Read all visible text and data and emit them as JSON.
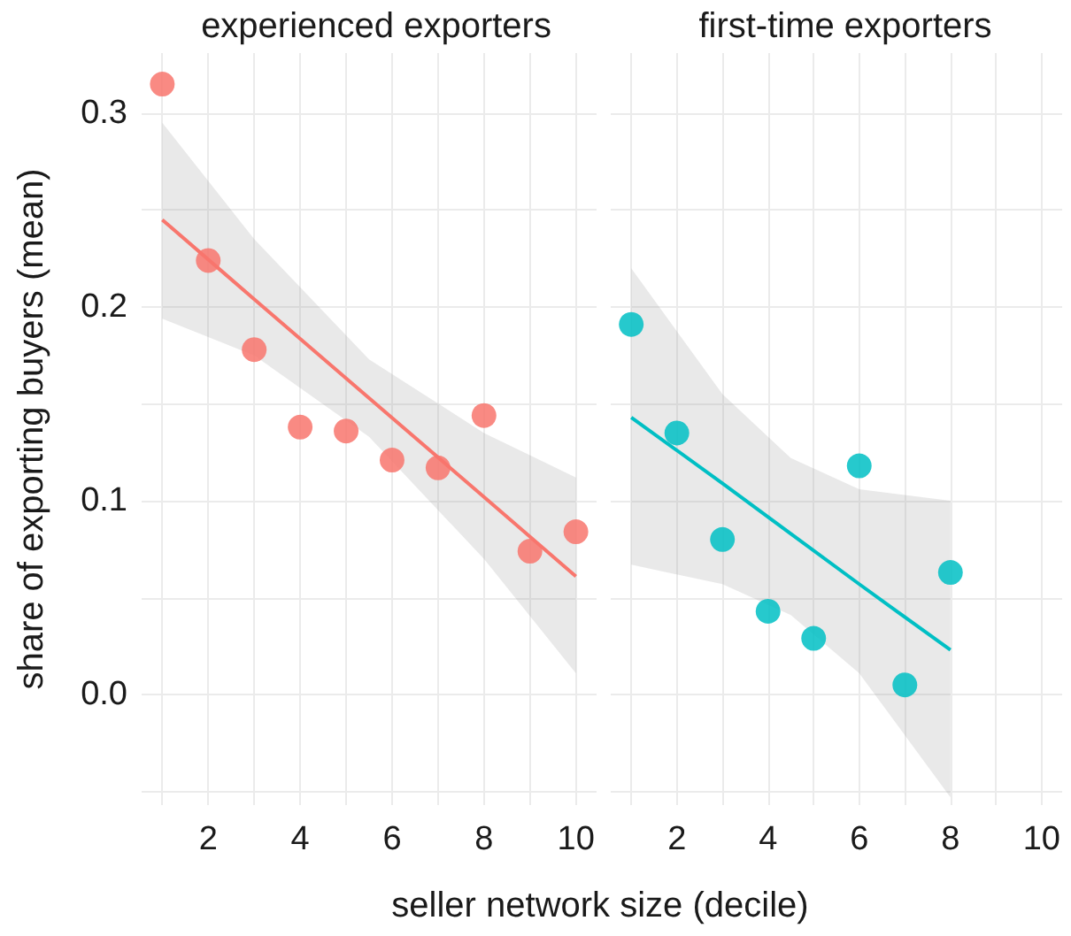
{
  "chart_data": [
    {
      "type": "scatter",
      "title": "experienced exporters",
      "xlabel": "seller network size (decile)",
      "ylabel": "share of exporting buyers (mean)",
      "xlim": [
        0.55,
        10.45
      ],
      "ylim": [
        -0.057,
        0.331
      ],
      "xticks": [
        {
          "value": 1,
          "label": null
        },
        2,
        {
          "value": 3,
          "label": null
        },
        4,
        {
          "value": 5,
          "label": null
        },
        6,
        {
          "value": 7,
          "label": null
        },
        8,
        {
          "value": 9,
          "label": null
        },
        10
      ],
      "yticks": [
        {
          "value": -0.05,
          "label": null
        },
        {
          "value": 0,
          "label": "0.0"
        },
        {
          "value": 0.05,
          "label": null
        },
        0.1,
        {
          "value": 0.15,
          "label": null
        },
        0.2,
        {
          "value": 0.25,
          "label": null
        },
        0.3
      ],
      "grid": true,
      "series": [
        {
          "marker": "circle",
          "color": "#f8766d",
          "x": [
            1,
            2,
            3,
            4,
            5,
            6,
            7,
            8,
            9,
            10
          ],
          "values": [
            0.315,
            0.224,
            0.178,
            0.138,
            0.136,
            0.121,
            0.117,
            0.144,
            0.074,
            0.084
          ]
        },
        {
          "type": "line",
          "marker": "none",
          "color": "#f8766d",
          "x": [
            1,
            3,
            5.5,
            8,
            10
          ],
          "values": [
            0.245,
            0.204,
            0.153,
            0.102,
            0.061
          ],
          "lower": [
            0.194,
            0.175,
            0.133,
            0.07,
            0.011
          ],
          "upper": [
            0.295,
            0.235,
            0.173,
            0.135,
            0.112
          ]
        }
      ]
    },
    {
      "type": "scatter",
      "title": "first-time exporters",
      "xlim": [
        0.55,
        10.45
      ],
      "ylim": [
        -0.057,
        0.331
      ],
      "tick_labels": "x",
      "xticks": [
        {
          "value": 1,
          "label": null
        },
        2,
        {
          "value": 3,
          "label": null
        },
        4,
        {
          "value": 5,
          "label": null
        },
        6,
        {
          "value": 7,
          "label": null
        },
        8,
        {
          "value": 9,
          "label": null
        },
        10
      ],
      "yticks": [
        {
          "value": -0.05,
          "label": null
        },
        0,
        {
          "value": 0.05,
          "label": null
        },
        0.1,
        {
          "value": 0.15,
          "label": null
        },
        0.2,
        {
          "value": 0.25,
          "label": null
        },
        0.3
      ],
      "grid": true,
      "series": [
        {
          "marker": "circle",
          "color": "#00bfc4",
          "x": [
            1,
            2,
            3,
            4,
            5,
            6,
            7,
            8
          ],
          "values": [
            0.191,
            0.135,
            0.08,
            0.043,
            0.029,
            0.118,
            0.005,
            0.063
          ]
        },
        {
          "type": "line",
          "marker": "none",
          "color": "#00bfc4",
          "x": [
            1,
            3,
            4.5,
            6,
            8
          ],
          "values": [
            0.143,
            0.109,
            0.083,
            0.057,
            0.023
          ],
          "lower": [
            0.067,
            0.057,
            0.041,
            0.011,
            -0.053
          ],
          "upper": [
            0.22,
            0.155,
            0.122,
            0.106,
            0.1
          ]
        }
      ]
    }
  ]
}
